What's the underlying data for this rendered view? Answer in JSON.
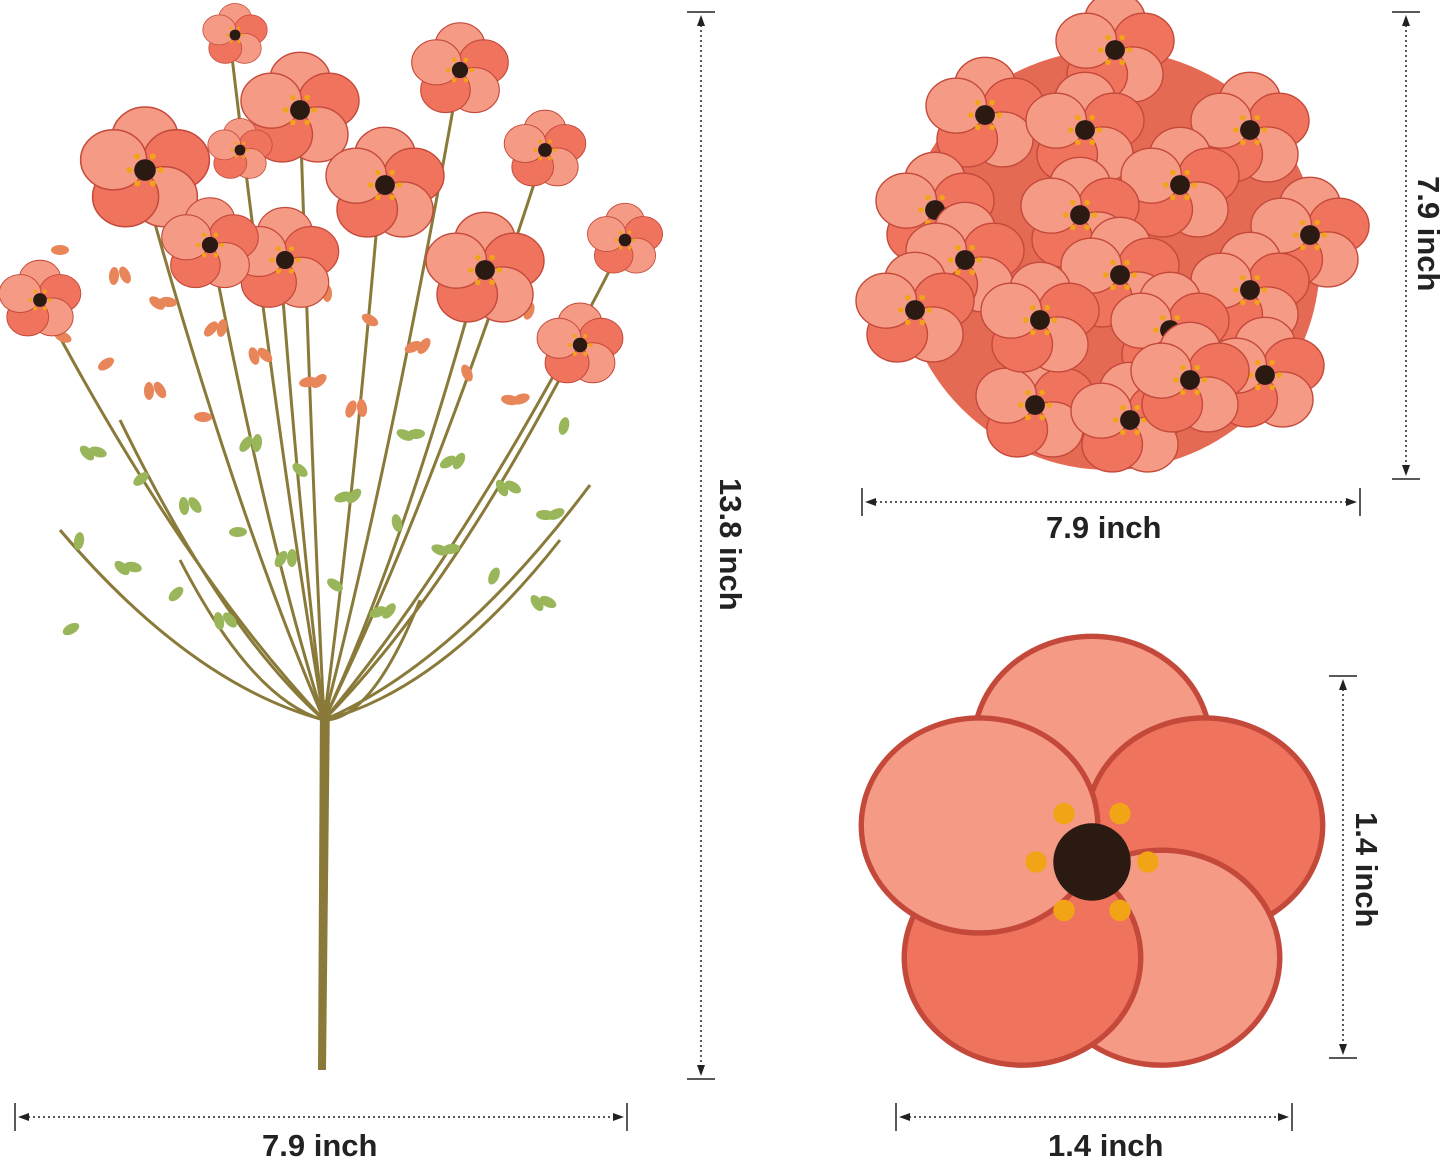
{
  "product": {
    "views": [
      {
        "name": "full-stem",
        "width_label": "7.9 inch",
        "height_label": "13.8 inch"
      },
      {
        "name": "bouquet-top",
        "width_label": "7.9 inch",
        "height_label": "7.9 inch"
      },
      {
        "name": "single-flower",
        "width_label": "1.4 inch",
        "height_label": "1.4 inch"
      }
    ]
  },
  "colors": {
    "petal": "#f0735e",
    "petal_light": "#f49a85",
    "center": "#2a1a12",
    "stamen": "#f2a417",
    "stem": "#8a7a3a",
    "leaf": "#9ab65a",
    "dimension_line": "#222222"
  }
}
